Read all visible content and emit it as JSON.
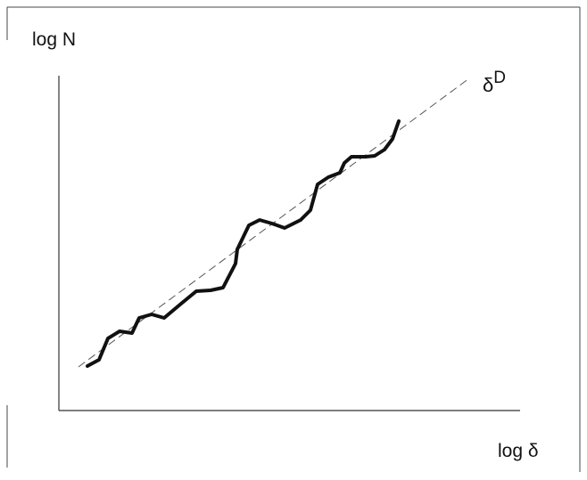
{
  "figure": {
    "y_axis_label": "log N",
    "x_axis_label": "log δ",
    "reference_line_label_base": "δ",
    "reference_line_label_superscript": "D"
  },
  "colors": {
    "frame": "#444444",
    "axes": "#333333",
    "curve": "#111111",
    "reference_line": "#555555"
  }
}
